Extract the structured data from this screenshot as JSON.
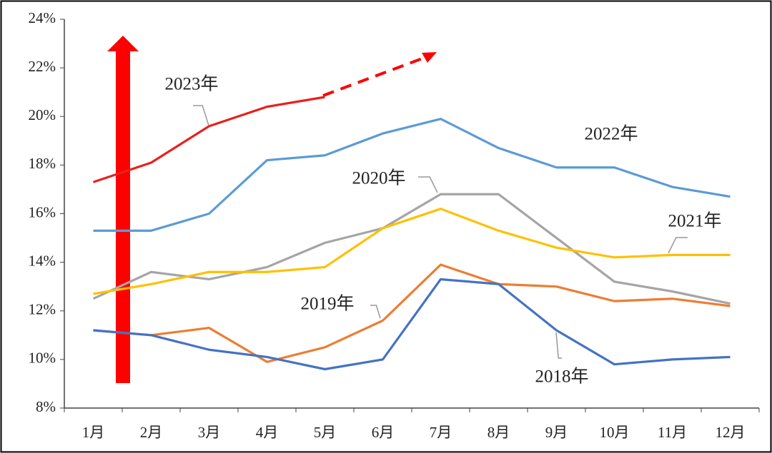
{
  "chart_data": {
    "type": "line",
    "categories": [
      "1月",
      "2月",
      "3月",
      "4月",
      "5月",
      "6月",
      "7月",
      "8月",
      "9月",
      "10月",
      "11月",
      "12月"
    ],
    "ylim": [
      8,
      24
    ],
    "yticks": [
      {
        "value": 8,
        "label": "8%"
      },
      {
        "value": 10,
        "label": "10%"
      },
      {
        "value": 12,
        "label": "12%"
      },
      {
        "value": 14,
        "label": "14%"
      },
      {
        "value": 16,
        "label": "16%"
      },
      {
        "value": 18,
        "label": "18%"
      },
      {
        "value": 20,
        "label": "20%"
      },
      {
        "value": 22,
        "label": "22%"
      },
      {
        "value": 24,
        "label": "24%"
      }
    ],
    "series": [
      {
        "name": "2023年",
        "color": "#e8201c",
        "values": [
          17.3,
          18.1,
          19.6,
          20.4,
          20.8,
          null,
          null,
          null,
          null,
          null,
          null,
          null
        ]
      },
      {
        "name": "2022年",
        "color": "#5b9bd5",
        "values": [
          15.3,
          15.3,
          16.0,
          18.2,
          18.4,
          19.3,
          19.9,
          18.7,
          17.9,
          17.9,
          17.1,
          16.7
        ]
      },
      {
        "name": "2020年",
        "color": "#a5a5a5",
        "values": [
          12.5,
          13.6,
          13.3,
          13.8,
          14.8,
          15.4,
          16.8,
          16.8,
          15.0,
          13.2,
          12.8,
          12.3
        ]
      },
      {
        "name": "2021年",
        "color": "#ffc000",
        "values": [
          12.7,
          13.1,
          13.6,
          13.6,
          13.8,
          15.4,
          16.2,
          15.3,
          14.6,
          14.2,
          14.3,
          14.3
        ]
      },
      {
        "name": "2019年",
        "color": "#ed7d31",
        "values": [
          11.2,
          11.0,
          11.3,
          9.9,
          10.5,
          11.6,
          13.9,
          13.1,
          13.0,
          12.4,
          12.5,
          12.2
        ]
      },
      {
        "name": "2018年",
        "color": "#4472c4",
        "values": [
          11.2,
          11.0,
          10.4,
          10.1,
          9.6,
          10.0,
          13.3,
          13.1,
          11.2,
          9.8,
          10.0,
          10.1
        ]
      }
    ]
  }
}
